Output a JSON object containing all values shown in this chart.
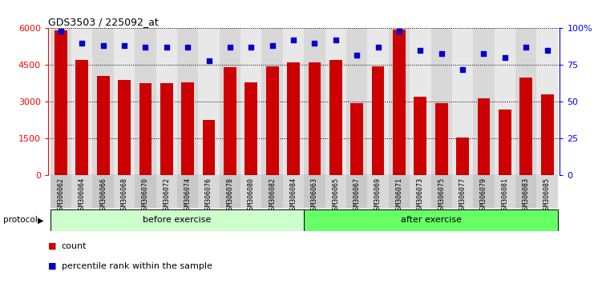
{
  "title": "GDS3503 / 225092_at",
  "samples": [
    "GSM306062",
    "GSM306064",
    "GSM306066",
    "GSM306068",
    "GSM306070",
    "GSM306072",
    "GSM306074",
    "GSM306076",
    "GSM306078",
    "GSM306080",
    "GSM306082",
    "GSM306084",
    "GSM306063",
    "GSM306065",
    "GSM306067",
    "GSM306069",
    "GSM306071",
    "GSM306073",
    "GSM306075",
    "GSM306077",
    "GSM306079",
    "GSM306081",
    "GSM306083",
    "GSM306085"
  ],
  "counts": [
    5900,
    4700,
    4050,
    3900,
    3750,
    3750,
    3800,
    2250,
    4400,
    3800,
    4450,
    4600,
    4600,
    4700,
    2950,
    4450,
    5950,
    3200,
    2950,
    1550,
    3150,
    2700,
    4000,
    3300
  ],
  "percentiles": [
    98,
    90,
    88,
    88,
    87,
    87,
    87,
    78,
    87,
    87,
    88,
    92,
    90,
    92,
    82,
    87,
    98,
    85,
    83,
    72,
    83,
    80,
    87,
    85
  ],
  "before_exercise_count": 12,
  "after_exercise_count": 12,
  "bar_color": "#cc0000",
  "dot_color": "#0000cc",
  "before_color": "#ccffcc",
  "after_color": "#66ff66",
  "ylim_left": [
    0,
    6000
  ],
  "ylim_right": [
    0,
    100
  ],
  "yticks_left": [
    0,
    1500,
    3000,
    4500,
    6000
  ],
  "ytick_labels_left": [
    "0",
    "1500",
    "3000",
    "4500",
    "6000"
  ],
  "yticks_right": [
    0,
    25,
    50,
    75,
    100
  ],
  "ytick_labels_right": [
    "0",
    "25",
    "50",
    "75",
    "100%"
  ],
  "legend_count_label": "count",
  "legend_percentile_label": "percentile rank within the sample",
  "protocol_label": "protocol",
  "before_label": "before exercise",
  "after_label": "after exercise"
}
